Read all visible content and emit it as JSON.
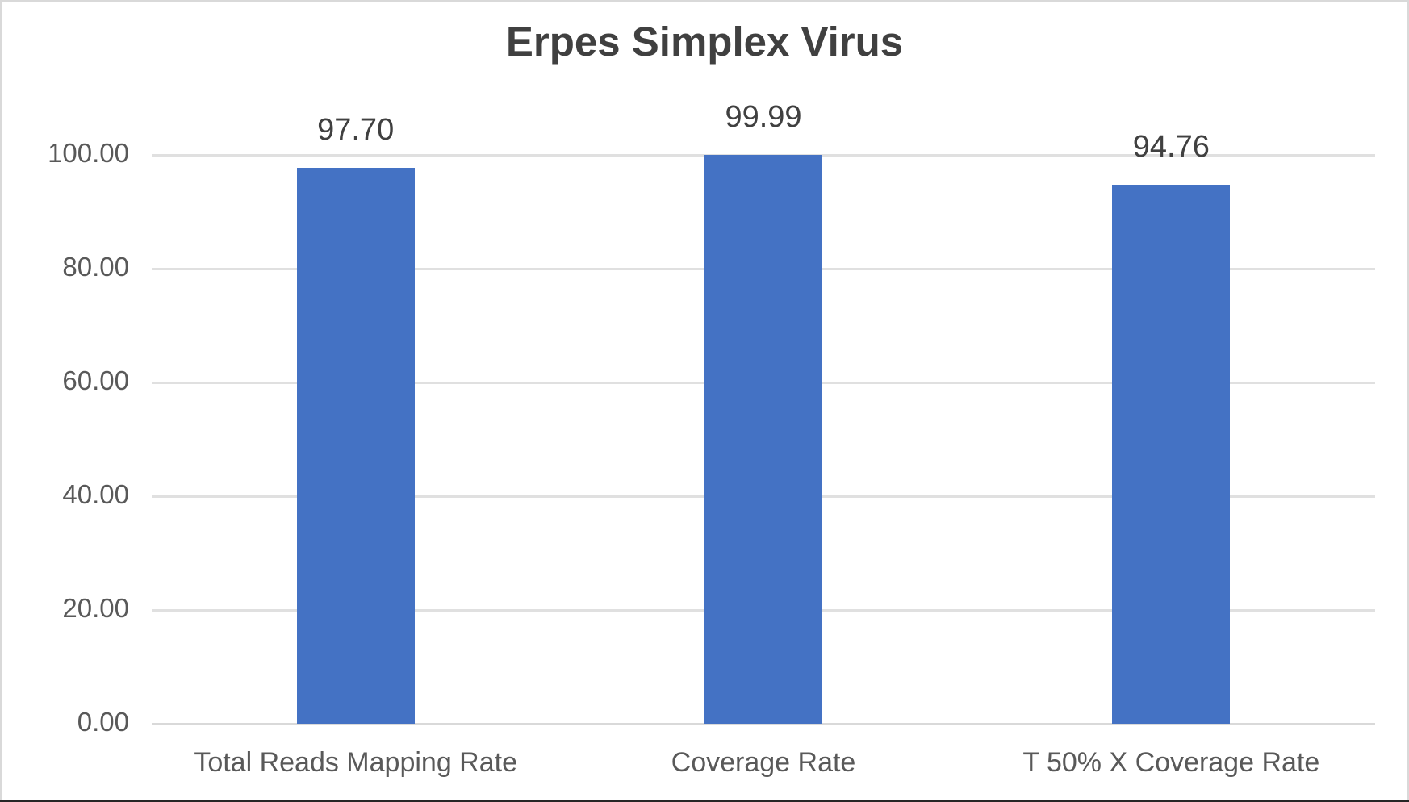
{
  "chart_data": {
    "type": "bar",
    "title": "Erpes Simplex Virus",
    "categories": [
      "Total Reads Mapping Rate",
      "Coverage Rate",
      "T 50% X Coverage Rate"
    ],
    "values": [
      97.7,
      99.99,
      94.76
    ],
    "value_labels": [
      "97.70",
      "99.99",
      "94.76"
    ],
    "xlabel": "",
    "ylabel": "",
    "ylim": [
      0,
      100
    ],
    "yticks": [
      0,
      20,
      40,
      60,
      80,
      100
    ],
    "ytick_labels": [
      "0.00",
      "20.00",
      "40.00",
      "60.00",
      "80.00",
      "100.00"
    ],
    "grid": true,
    "legend": null,
    "bar_color": "#4472C4"
  }
}
